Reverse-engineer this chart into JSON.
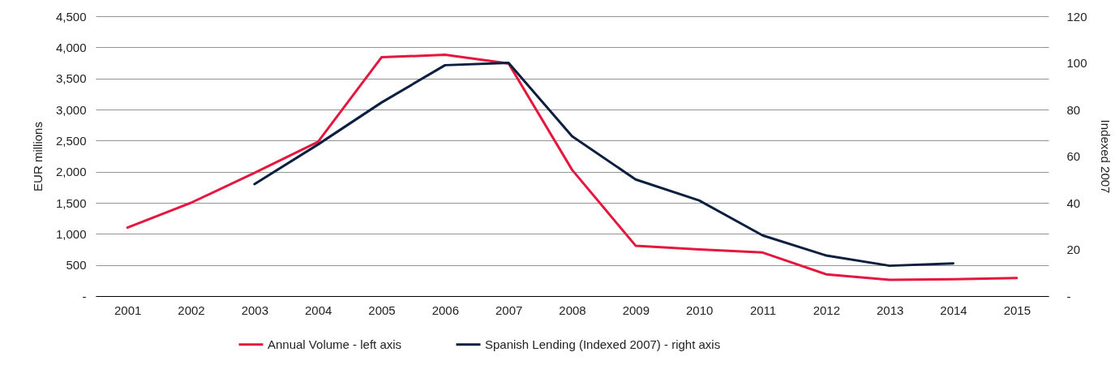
{
  "chart_data": {
    "type": "line",
    "ylabel": "EUR millions",
    "y2label": "Indexed 2007",
    "categories": [
      "2001",
      "2002",
      "2003",
      "2004",
      "2005",
      "2006",
      "2007",
      "2008",
      "2009",
      "2010",
      "2011",
      "2012",
      "2013",
      "2014",
      "2015"
    ],
    "series": [
      {
        "name": "Annual Volume - left axis",
        "color": "#e4173e",
        "values": [
          1100,
          1500,
          1980,
          2480,
          3840,
          3880,
          3740,
          2030,
          810,
          750,
          700,
          350,
          260,
          270,
          290
        ]
      },
      {
        "name": "Spanish Lending (Indexed 2007) - right axis",
        "color": "#0c1f3f",
        "axis": "y2",
        "values": [
          null,
          null,
          48,
          65,
          83,
          99,
          100,
          68.5,
          50,
          41,
          26,
          17.4,
          13,
          14,
          null
        ]
      }
    ],
    "ylim": [
      0,
      4500
    ],
    "yticks": [
      {
        "value": 0,
        "label": "-"
      },
      500,
      {
        "value": 1000,
        "label": "1,000"
      },
      {
        "value": 1500,
        "label": "1,500"
      },
      {
        "value": 2000,
        "label": "2,000"
      },
      {
        "value": 2500,
        "label": "2,500"
      },
      {
        "value": 3000,
        "label": "3,000"
      },
      {
        "value": 3500,
        "label": "3,500"
      },
      {
        "value": 4000,
        "label": "4,000"
      },
      {
        "value": 4500,
        "label": "4,500"
      }
    ],
    "y2lim": [
      0,
      120
    ],
    "y2ticks": [
      {
        "value": 0,
        "label": "-"
      },
      20,
      40,
      60,
      80,
      100,
      120
    ],
    "grid": "y",
    "legend": "bottom"
  }
}
